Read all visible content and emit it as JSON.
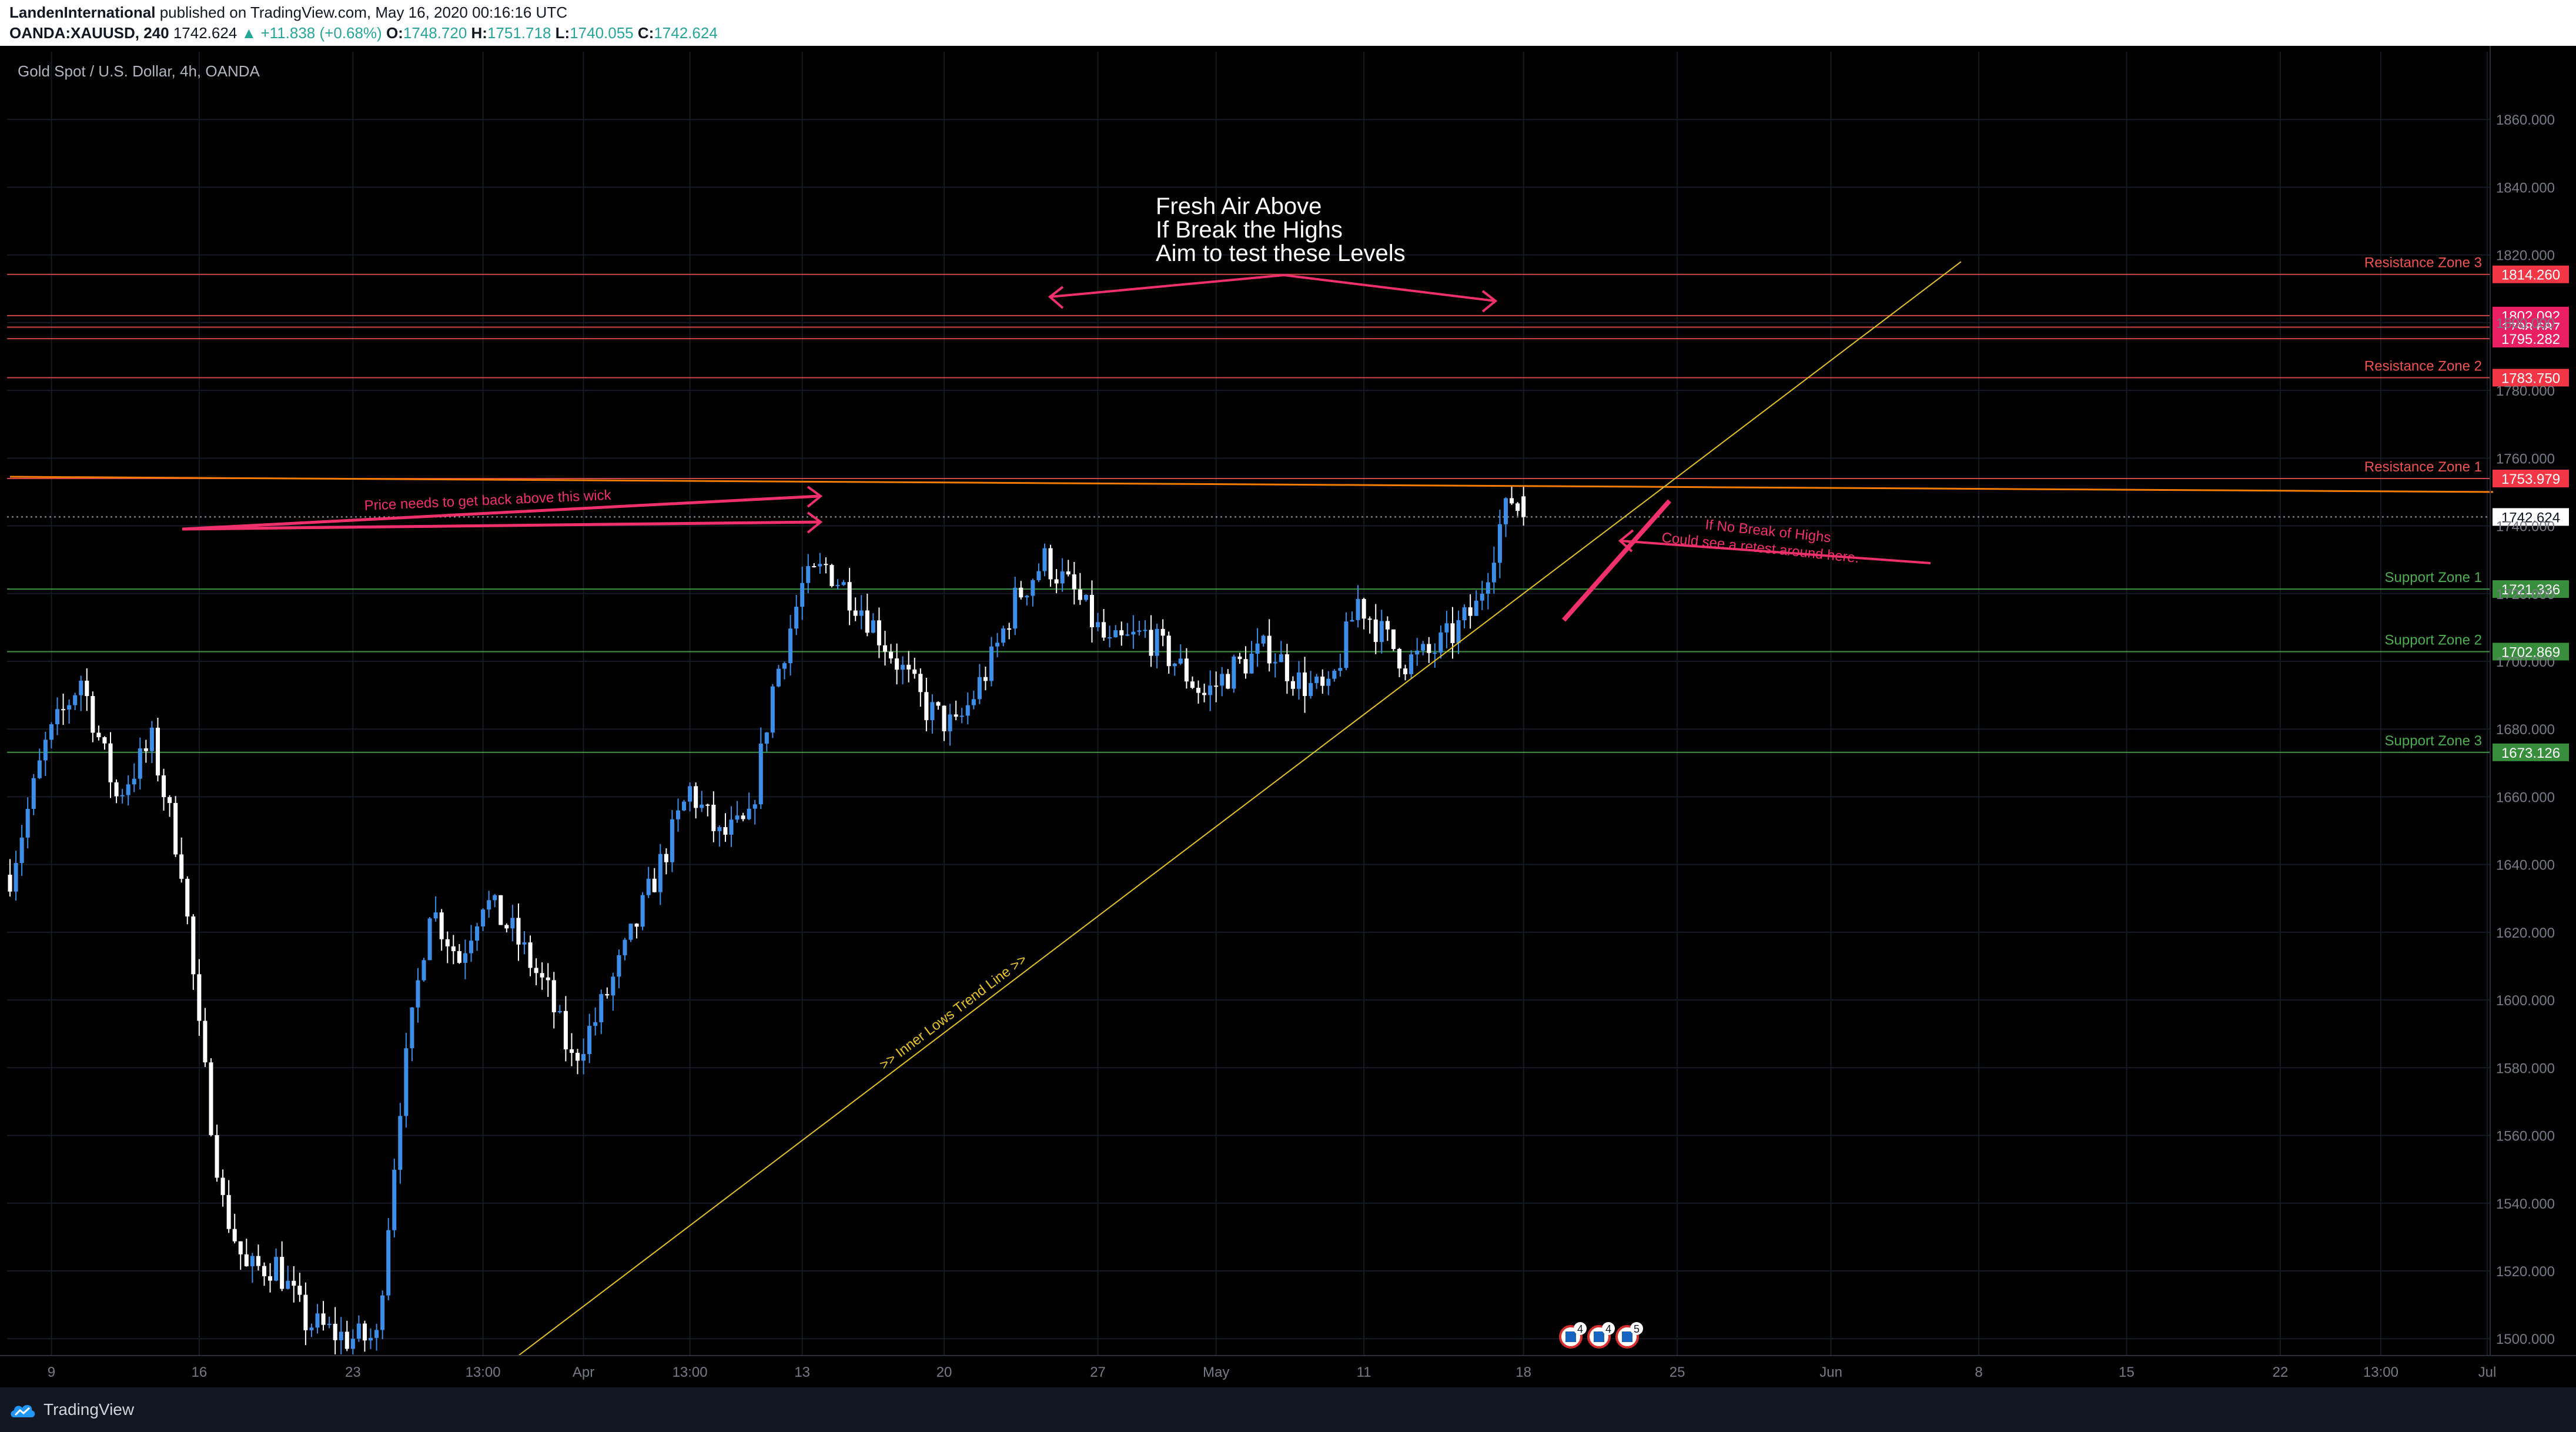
{
  "header": {
    "author": "LandenInternational",
    "published": "published on TradingView.com, May 16, 2020 00:16:16 UTC",
    "symbol": "OANDA:XAUUSD, 240",
    "last": "1742.624",
    "change": "▲ +11.838 (+0.68%)",
    "o_label": "O:",
    "o_value": "1748.720",
    "h_label": "H:",
    "h_value": "1751.718",
    "l_label": "L:",
    "l_value": "1740.055",
    "c_label": "C:",
    "c_value": "1742.624"
  },
  "chart_title": "Gold Spot / U.S. Dollar, 4h, OANDA",
  "annotations": {
    "fresh_air": [
      "Fresh Air Above",
      "If Break the Highs",
      "Aim to test these Levels"
    ],
    "wick_note": "Price needs to get back above this wick",
    "retest_note": [
      "If No Break of Highs",
      "Could see a retest around here."
    ],
    "trendline_label": ">> Inner Lows Trend Line >>"
  },
  "colors": {
    "background": "#000000",
    "grid": "#161a25",
    "candle_up": "#3d8ee8",
    "candle_down": "#ffffff",
    "resistance": "#ef5350",
    "support": "#4caf50",
    "trendline": "#e6c229",
    "annotation": "#f0306c",
    "orange_line": "#f57c00"
  },
  "footer": {
    "brand": "TradingView",
    "logo_icon": "tradingview-cloud-icon"
  },
  "event_icons": [
    {
      "icon": "us-flag-icon",
      "count": "4"
    },
    {
      "icon": "us-flag-icon",
      "count": "4"
    },
    {
      "icon": "us-flag-icon",
      "count": "5"
    }
  ],
  "chart_data": {
    "type": "candlestick",
    "title": "Gold Spot / U.S. Dollar, 4h, OANDA",
    "ylim": [
      1495,
      1880
    ],
    "y_ticks": [
      1500,
      1520,
      1540,
      1560,
      1580,
      1600,
      1620,
      1640,
      1660,
      1680,
      1700,
      1720,
      1740,
      1760,
      1780,
      1800,
      1820,
      1840,
      1860
    ],
    "y_tick_labels": [
      "1500.000",
      "1520.000",
      "1540.000",
      "1560.000",
      "1580.000",
      "1600.000",
      "1620.000",
      "1640.000",
      "1660.000",
      "1680.000",
      "1700.000",
      "1720.000",
      "1740.000",
      "1760.000",
      "1780.000",
      "1800.000",
      "1820.000",
      "1840.000",
      "1860.000"
    ],
    "x_tick_labels": [
      "9",
      "16",
      "23",
      "13:00",
      "Apr",
      "13:00",
      "13",
      "20",
      "27",
      "May",
      "11",
      "18",
      "25",
      "Jun",
      "8",
      "15",
      "22",
      "13:00",
      "Jul"
    ],
    "x_tick_bars": [
      7,
      32,
      58,
      80,
      97,
      115,
      134,
      158,
      184,
      204,
      229,
      256,
      282,
      308,
      333,
      358,
      384,
      401,
      419
    ],
    "bar_count": 420,
    "levels": [
      {
        "label": "Resistance Zone 3",
        "value": 1814.26,
        "price": "1814.260",
        "kind": "resistance"
      },
      {
        "label": "",
        "value": 1802.092,
        "price": "1802.092",
        "kind": "resistance"
      },
      {
        "label": "",
        "value": 1798.687,
        "price": "1798.687",
        "kind": "resistance"
      },
      {
        "label": "",
        "value": 1795.282,
        "price": "1795.282",
        "kind": "resistance"
      },
      {
        "label": "Resistance Zone 2",
        "value": 1783.75,
        "price": "1783.750",
        "kind": "resistance"
      },
      {
        "label": "Resistance Zone 1",
        "value": 1753.979,
        "price": "1753.979",
        "kind": "resistance"
      },
      {
        "label": "Support Zone 1",
        "value": 1721.336,
        "price": "1721.336",
        "kind": "support"
      },
      {
        "label": "Support Zone 2",
        "value": 1702.869,
        "price": "1702.869",
        "kind": "support"
      },
      {
        "label": "Support Zone 3",
        "value": 1673.126,
        "price": "1673.126",
        "kind": "support"
      }
    ],
    "current_price": 1742.624,
    "current_price_label": "1742.624",
    "trend_line": {
      "bar_start": 86,
      "price_start": 1495,
      "bar_end": 330,
      "price_end": 1818
    },
    "orange_line": {
      "bar_start": 0,
      "price_start": 1754.5,
      "bar_end": 420,
      "price_end": 1750
    },
    "price_path_anchors": [
      [
        0,
        1637
      ],
      [
        6,
        1675
      ],
      [
        12,
        1695
      ],
      [
        18,
        1660
      ],
      [
        24,
        1676
      ],
      [
        29,
        1640
      ],
      [
        32,
        1590
      ],
      [
        36,
        1540
      ],
      [
        40,
        1520
      ],
      [
        45,
        1522
      ],
      [
        50,
        1505
      ],
      [
        57,
        1500
      ],
      [
        62,
        1500
      ],
      [
        66,
        1570
      ],
      [
        71,
        1628
      ],
      [
        76,
        1612
      ],
      [
        80,
        1630
      ],
      [
        85,
        1620
      ],
      [
        91,
        1602
      ],
      [
        95,
        1582
      ],
      [
        99,
        1594
      ],
      [
        104,
        1614
      ],
      [
        110,
        1640
      ],
      [
        115,
        1662
      ],
      [
        120,
        1648
      ],
      [
        125,
        1652
      ],
      [
        129,
        1692
      ],
      [
        134,
        1722
      ],
      [
        138,
        1728
      ],
      [
        144,
        1716
      ],
      [
        150,
        1700
      ],
      [
        155,
        1686
      ],
      [
        160,
        1680
      ],
      [
        166,
        1700
      ],
      [
        170,
        1718
      ],
      [
        175,
        1730
      ],
      [
        180,
        1720
      ],
      [
        186,
        1704
      ],
      [
        192,
        1708
      ],
      [
        197,
        1700
      ],
      [
        202,
        1690
      ],
      [
        207,
        1698
      ],
      [
        213,
        1704
      ],
      [
        218,
        1694
      ],
      [
        223,
        1690
      ],
      [
        228,
        1718
      ],
      [
        232,
        1708
      ],
      [
        236,
        1700
      ],
      [
        240,
        1702
      ],
      [
        244,
        1708
      ],
      [
        248,
        1716
      ],
      [
        252,
        1740
      ],
      [
        254,
        1748
      ],
      [
        256,
        1742.624
      ]
    ]
  }
}
